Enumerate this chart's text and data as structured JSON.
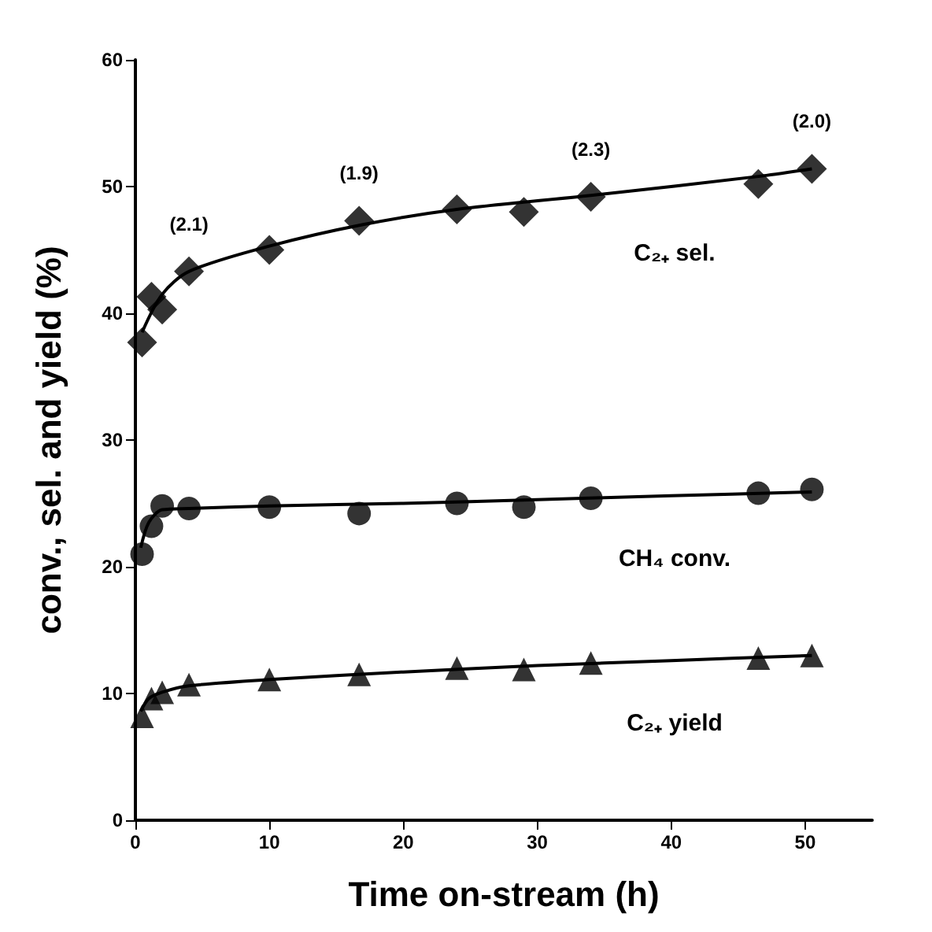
{
  "chart_data": {
    "type": "scatter",
    "xlabel": "Time on-stream (h)",
    "ylabel": "conv., sel. and yield (%)",
    "xlim": [
      0,
      55
    ],
    "ylim": [
      0,
      60
    ],
    "xticks": [
      0,
      10,
      20,
      30,
      40,
      50
    ],
    "yticks": [
      0,
      10,
      20,
      30,
      40,
      50,
      60
    ],
    "grid": false,
    "legend": false,
    "x": [
      0.5,
      1.2,
      2,
      4,
      10,
      16.7,
      24,
      29,
      34,
      46.5,
      50.5
    ],
    "series": [
      {
        "name": "C₂₊ sel.",
        "color": "#000000",
        "marker": "diamond",
        "values": [
          37.7,
          41.3,
          40.3,
          43.3,
          45,
          47.3,
          48.2,
          48,
          49.2,
          50.2,
          51.4
        ]
      },
      {
        "name": "CH₄ conv.",
        "color": "#000000",
        "marker": "circle",
        "values": [
          21,
          23.2,
          24.8,
          24.6,
          24.7,
          24.2,
          25,
          24.7,
          25.4,
          25.8,
          26.1
        ]
      },
      {
        "name": "C₂₊ yield",
        "color": "#000000",
        "marker": "triangle",
        "values": [
          8.2,
          9.6,
          10.1,
          10.7,
          11.1,
          11.5,
          12,
          11.9,
          12.4,
          12.8,
          13
        ]
      },
      {
        "type": "line",
        "marker": "none",
        "color": "#000000",
        "x": [
          0.5,
          2,
          4,
          10,
          17,
          24,
          34,
          46.5,
          50.5
        ],
        "values": [
          38.5,
          41.5,
          43.3,
          45.3,
          47,
          48.2,
          49.3,
          50.8,
          51.4
        ]
      },
      {
        "type": "line",
        "marker": "none",
        "color": "#000000",
        "x": [
          0.4,
          1,
          2,
          4,
          10,
          20,
          30,
          40,
          50.5
        ],
        "values": [
          21.5,
          23.5,
          24.5,
          24.6,
          24.8,
          25,
          25.3,
          25.6,
          25.9
        ]
      },
      {
        "type": "line",
        "marker": "none",
        "color": "#000000",
        "x": [
          0.4,
          1,
          2,
          4,
          10,
          20,
          30,
          40,
          50.5
        ],
        "values": [
          8.6,
          9.6,
          10.1,
          10.6,
          11.1,
          11.7,
          12.2,
          12.6,
          13
        ]
      }
    ],
    "annotations": [
      {
        "text": "(2.1)",
        "x": 4,
        "y": 43.3
      },
      {
        "text": "(1.9)",
        "x": 16.7,
        "y": 47.3
      },
      {
        "text": "(2.3)",
        "x": 34,
        "y": 49.2
      },
      {
        "text": "(2.0)",
        "x": 50.5,
        "y": 51.4
      }
    ]
  }
}
